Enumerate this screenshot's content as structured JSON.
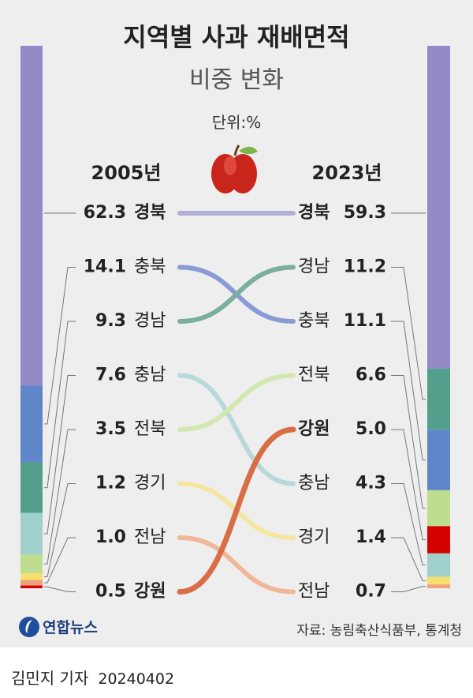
{
  "header": {
    "title": "지역별 사과 재배면적",
    "subtitle": "비중 변화",
    "unit": "단위:%"
  },
  "chart_data": {
    "type": "slope",
    "title": "지역별 사과 재배면적",
    "subtitle": "비중 변화",
    "unit": "%",
    "years": [
      "2005년",
      "2023년"
    ],
    "series": [
      {
        "region": "경북",
        "v2005": 62.3,
        "v2023": 59.3,
        "rank2005": 1,
        "rank2023": 1,
        "color": "#b1aed8",
        "bar": "#968ac6"
      },
      {
        "region": "충북",
        "v2005": 14.1,
        "v2023": 11.1,
        "rank2005": 2,
        "rank2023": 3,
        "color": "#8a9ad4",
        "bar": "#5f86c8"
      },
      {
        "region": "경남",
        "v2005": 9.3,
        "v2023": 11.2,
        "rank2005": 3,
        "rank2023": 2,
        "color": "#7aaf9d",
        "bar": "#52a08b"
      },
      {
        "region": "충남",
        "v2005": 7.6,
        "v2023": 4.3,
        "rank2005": 4,
        "rank2023": 6,
        "color": "#b8d9d8",
        "bar": "#9fd0cc"
      },
      {
        "region": "전북",
        "v2005": 3.5,
        "v2023": 6.6,
        "rank2005": 5,
        "rank2023": 4,
        "color": "#d3e7b0",
        "bar": "#bedd8e"
      },
      {
        "region": "경기",
        "v2005": 1.2,
        "v2023": 1.4,
        "rank2005": 6,
        "rank2023": 7,
        "color": "#f4e5a0",
        "bar": "#f7df6e"
      },
      {
        "region": "전남",
        "v2005": 1.0,
        "v2023": 0.7,
        "rank2005": 7,
        "rank2023": 8,
        "color": "#f0b899",
        "bar": "#eda27e"
      },
      {
        "region": "강원",
        "v2005": 0.5,
        "v2023": 5.0,
        "rank2005": 8,
        "rank2023": 5,
        "color": "#d86e45",
        "bar": "#d50000"
      }
    ]
  },
  "source": "자료: 농림축산식품부, 통계청",
  "logo": {
    "name": "연합뉴스"
  },
  "reporter": {
    "name": "김민지 기자",
    "date": "20240402"
  },
  "icons": {
    "apple": "apple-icon"
  },
  "colors": {
    "background": "#eeeeef",
    "text": "#222222"
  }
}
